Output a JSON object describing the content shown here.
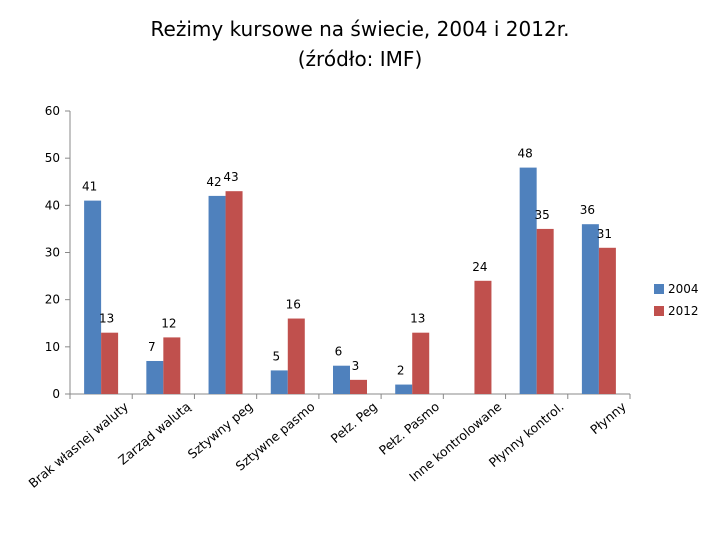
{
  "title": "Reżimy kursowe na świecie, 2004 i 2012r.",
  "subtitle": "(źródło: IMF)",
  "colors": {
    "series_2004": "#4F81BD",
    "series_2012": "#C0504D",
    "axis": "#888888"
  },
  "chart_data": {
    "type": "bar",
    "title": "Reżimy kursowe na świecie, 2004 i 2012r.",
    "subtitle": "(źródło: IMF)",
    "categories": [
      "Brak własnej waluty",
      "Zarząd walutą",
      "Sztywny peg",
      "Sztywne pasmo",
      "Pełz. Peg",
      "Pełz. Pasmo",
      "Inne kontrolowane",
      "Płynny kontrol.",
      "Płynny"
    ],
    "series": [
      {
        "name": "2004",
        "values": [
          41,
          7,
          42,
          5,
          6,
          2,
          null,
          48,
          36
        ]
      },
      {
        "name": "2012",
        "values": [
          13,
          12,
          43,
          16,
          3,
          13,
          24,
          35,
          31
        ]
      }
    ],
    "y_ticks": [
      "0",
      "10",
      "20",
      "30",
      "40",
      "50",
      "60"
    ],
    "ylim": [
      0,
      60
    ],
    "xlabel": "",
    "ylabel": "",
    "legend": "right",
    "grid": false
  }
}
